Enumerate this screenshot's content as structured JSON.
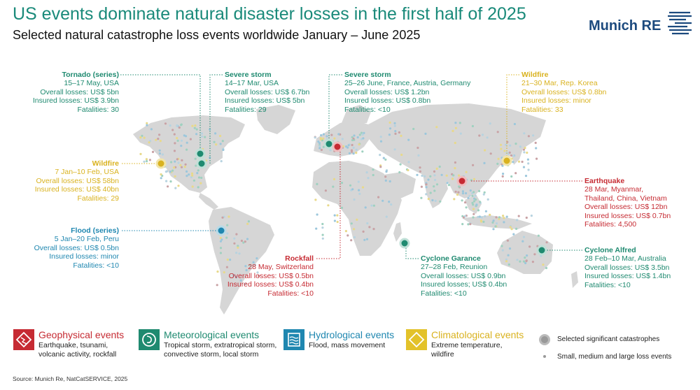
{
  "header": {
    "title": "US events dominate natural disaster losses in the first half of 2025",
    "subtitle": "Selected natural catastrophe loss events worldwide January – June 2025",
    "brand": "Munich RE"
  },
  "colors": {
    "meteorological": "#1f8a70",
    "climatological": "#d9b21f",
    "hydrological": "#1f87b0",
    "geophysical": "#c62b33",
    "land": "#d6d6d6",
    "small_event": "#9cc7dc"
  },
  "events": {
    "tornado": {
      "name": "Tornado (series)",
      "date": "15–17 May, USA",
      "overall": "Overall losses: US$ 5bn",
      "insured": "Insured losses: US$ 3.9bn",
      "fatalities": "Fatalities: 30"
    },
    "storm_us": {
      "name": "Severe storm",
      "date": "14–17 Mar, USA",
      "overall": "Overall losses: US$ 6.7bn",
      "insured": "Insured losses: US$ 5bn",
      "fatalities": "Fatalities: 29"
    },
    "storm_eu": {
      "name": "Severe storm",
      "date": "25–26 June, France, Austria, Germany",
      "overall": "Overall losses: US$ 1.2bn",
      "insured": "Insured losses: US$ 0.8bn",
      "fatalities": "Fatalities: <10"
    },
    "wildfire_kr": {
      "name": "Wildfire",
      "date": "21–30 Mar, Rep. Korea",
      "overall": "Overall losses: US$ 0.8bn",
      "insured": "Insured losses: minor",
      "fatalities": "Fatalities: 33"
    },
    "wildfire_us": {
      "name": "Wildfire",
      "date": "7 Jan–10 Feb, USA",
      "overall": "Overall losses: US$ 58bn",
      "insured": "Insured losses: US$ 40bn",
      "fatalities": "Fatalities: 29"
    },
    "earthquake": {
      "name": "Earthquake",
      "date": "28 Mar, Myanmar,",
      "date2": "Thailand, China, Vietnam",
      "overall": "Overall losses: US$ 12bn",
      "insured": "Insured losses: US$ 0.7bn",
      "fatalities": "Fatalities: 4,500"
    },
    "flood": {
      "name": "Flood (series)",
      "date": "5 Jan–20 Feb, Peru",
      "overall": "Overall losses: US$ 0.5bn",
      "insured": "Insured losses: minor",
      "fatalities": "Fatalities: <10"
    },
    "rockfall": {
      "name": "Rockfall",
      "date": "28 May, Switzerland",
      "overall": "Overall losses: US$ 0.5bn",
      "insured": "Insured losses: US$ 0.4bn",
      "fatalities": "Fatalities: <10"
    },
    "garance": {
      "name": "Cyclone Garance",
      "date": "27–28 Feb, Reunion",
      "overall": "Overall losses: US$ 0.9bn",
      "insured": "Insured losses; US$ 0.4bn",
      "fatalities": "Fatalities: <10"
    },
    "alfred": {
      "name": "Cyclone Alfred",
      "date": "28 Feb–10 Mar, Australia",
      "overall": "Overall losses: US$ 3.5bn",
      "insured": "Insured losses: US$ 1.4bn",
      "fatalities": "Fatalities: <10"
    }
  },
  "legend": {
    "geophysical": {
      "title": "Geophysical events",
      "desc1": "Earthquake, tsunami,",
      "desc2": "volcanic activity, rockfall"
    },
    "meteorological": {
      "title": "Meteorological events",
      "desc1": "Tropical storm, extratropical storm,",
      "desc2": "convective storm, local storm"
    },
    "hydrological": {
      "title": "Hydrological events",
      "desc1": "Flood, mass movement"
    },
    "climatological": {
      "title": "Climatological events",
      "desc1": "Extreme temperature,",
      "desc2": "wildfire"
    },
    "selected": "Selected significant catastrophes",
    "small": "Small, medium and large loss events"
  },
  "footer": {
    "source": "Source: Munich Re, NatCatSERVICE, 2025"
  }
}
